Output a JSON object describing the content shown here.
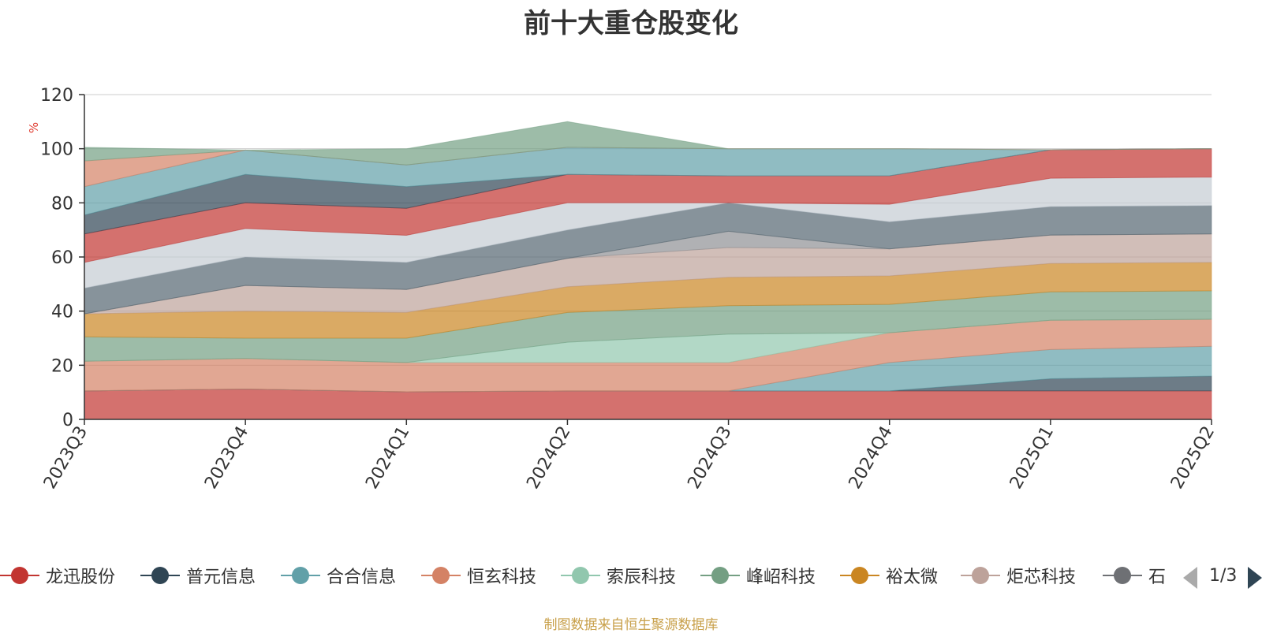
{
  "title": "前十大重仓股变化",
  "y_unit": "%",
  "source": "制图数据来自恒生聚源数据库",
  "pager": {
    "text": "1/3"
  },
  "legend_visible": [
    {
      "label": "龙迅股份",
      "icon": "circle-marker-icon"
    },
    {
      "label": "普元信息",
      "icon": "circle-marker-icon"
    },
    {
      "label": "合合信息",
      "icon": "circle-marker-icon"
    },
    {
      "label": "恒玄科技",
      "icon": "circle-marker-icon"
    },
    {
      "label": "索辰科技",
      "icon": "circle-marker-icon"
    },
    {
      "label": "峰岹科技",
      "icon": "circle-marker-icon"
    },
    {
      "label": "裕太微",
      "icon": "circle-marker-icon"
    },
    {
      "label": "炬芯科技",
      "icon": "circle-marker-icon"
    },
    {
      "label": "石:",
      "icon": "circle-marker-icon"
    }
  ],
  "colors": [
    "#c23531",
    "#2f4554",
    "#61a0a8",
    "#d48265",
    "#91c7ae",
    "#749f83",
    "#ca8622",
    "#bda29a",
    "#6e7074",
    "#546570",
    "#c4ccd3",
    "#c23531"
  ],
  "chart_data": {
    "type": "area",
    "title": "前十大重仓股变化",
    "stacked": true,
    "ylabel": "%",
    "ylim": [
      0,
      120
    ],
    "yticks": [
      0,
      20,
      40,
      60,
      80,
      100,
      120
    ],
    "grid": "horizontal",
    "legend_position": "bottom",
    "categories": [
      "2023Q3",
      "2023Q4",
      "2024Q1",
      "2024Q2",
      "2024Q3",
      "2024Q4",
      "2025Q1",
      "2025Q2"
    ],
    "series": [
      {
        "name": "龙迅股份",
        "values": [
          10.5,
          11.2,
          10.2,
          10.5,
          10.5,
          10.5,
          10.5,
          10.5
        ]
      },
      {
        "name": "普元信息",
        "values": [
          0,
          0,
          0,
          0,
          0,
          0,
          4.5,
          5.5
        ]
      },
      {
        "name": "合合信息",
        "values": [
          0,
          0,
          0,
          0,
          0,
          10.5,
          10.8,
          11.0
        ]
      },
      {
        "name": "恒玄科技",
        "values": [
          11.0,
          11.3,
          10.8,
          10.5,
          10.5,
          11.0,
          10.8,
          10.0
        ]
      },
      {
        "name": "索辰科技",
        "values": [
          0,
          0,
          0,
          7.5,
          10.5,
          0,
          0,
          0
        ]
      },
      {
        "name": "峰岹科技",
        "values": [
          9.0,
          7.5,
          9.0,
          11.0,
          10.5,
          10.5,
          10.5,
          10.5
        ]
      },
      {
        "name": "裕太微",
        "values": [
          8.5,
          10.0,
          9.5,
          9.5,
          10.5,
          10.5,
          10.5,
          10.5
        ]
      },
      {
        "name": "炬芯科技",
        "values": [
          0,
          9.5,
          8.5,
          10.5,
          11.0,
          10.0,
          10.5,
          10.5
        ]
      },
      {
        "values": [
          0,
          0,
          0,
          0,
          6.0,
          0,
          0,
          0
        ]
      },
      {
        "values": [
          9.5,
          10.5,
          10.0,
          10.5,
          10.5,
          10.0,
          10.5,
          10.5
        ]
      },
      {
        "values": [
          9.5,
          10.5,
          10.0,
          10.0,
          0,
          6.5,
          10.5,
          10.5
        ]
      },
      {
        "values": [
          10.5,
          9.5,
          10.0,
          10.5,
          10.0,
          10.5,
          10.5,
          10.5
        ]
      },
      {
        "values": [
          7.0,
          10.5,
          8.0,
          0,
          0,
          0,
          0,
          0
        ]
      },
      {
        "values": [
          10.5,
          9.0,
          8.0,
          10.0,
          10.0,
          10.0,
          0,
          0
        ]
      },
      {
        "values": [
          9.5,
          0,
          0,
          0,
          0,
          0,
          0,
          0
        ]
      },
      {
        "values": [
          5.0,
          0,
          6.0,
          9.5,
          0,
          0,
          0,
          0
        ]
      }
    ],
    "series_colors": [
      "#c23531",
      "#2f4554",
      "#61a0a8",
      "#d48265",
      "#91c7ae",
      "#749f83",
      "#ca8622",
      "#bda29a",
      "#8e9094",
      "#546570",
      "#c4ccd3",
      "#c23531",
      "#2f4554",
      "#61a0a8",
      "#d48265",
      "#749f83"
    ]
  }
}
